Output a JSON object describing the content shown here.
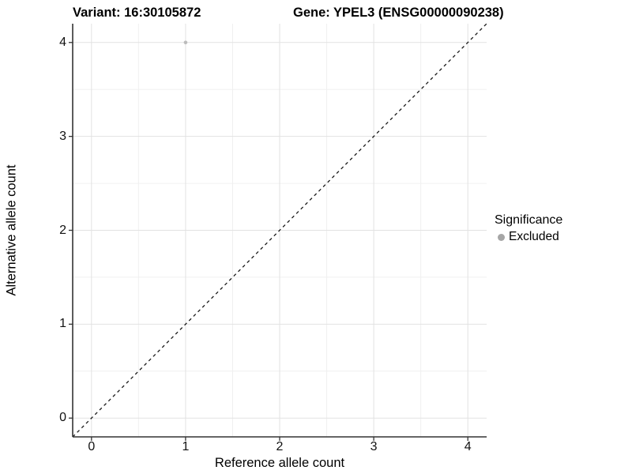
{
  "chart_data": {
    "type": "scatter",
    "title_left": "Variant: 16:30105872",
    "title_right": "Gene: YPEL3 (ENSG00000090238)",
    "xlabel": "Reference allele count",
    "ylabel": "Alternative allele count",
    "xlim": [
      -0.2,
      4.2
    ],
    "ylim": [
      -0.2,
      4.2
    ],
    "xticks": [
      0,
      1,
      2,
      3,
      4
    ],
    "yticks": [
      0,
      1,
      2,
      3,
      4
    ],
    "minor_tick_positions": [
      0.5,
      1.5,
      2.5,
      3.5
    ],
    "grid": "major-and-minor",
    "points": [
      {
        "x": 1,
        "y": 4,
        "series": "Excluded"
      }
    ],
    "identity_line": {
      "style": "dashed",
      "from": [
        -0.2,
        -0.2
      ],
      "to": [
        4.2,
        4.2
      ],
      "color": "#1a1a1a"
    },
    "legend": {
      "position": "right",
      "title": "Significance",
      "items": [
        {
          "label": "Excluded",
          "color": "#a6a6a6"
        }
      ]
    },
    "colors": {
      "point": "#bcbcbc",
      "grid_major": "#e2e2e2",
      "grid_minor": "#f0f0f0",
      "axis": "#333333",
      "tick": "#333333"
    }
  }
}
